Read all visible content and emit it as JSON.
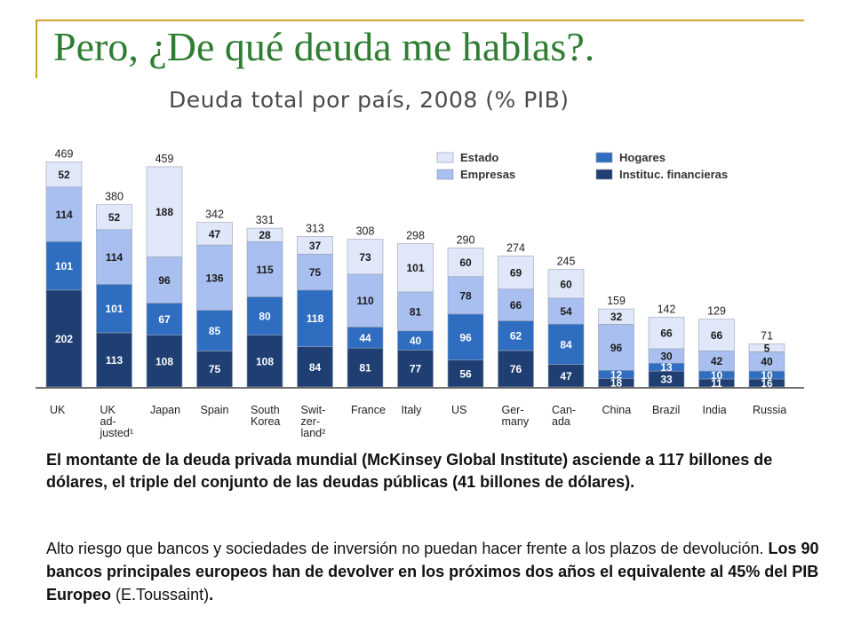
{
  "slide": {
    "title": "Pero, ¿De qué deuda me hablas?."
  },
  "chart_data": {
    "type": "bar",
    "stacked": true,
    "title": "Deuda total por país, 2008 (% PIB)",
    "categories": [
      [
        "UK"
      ],
      [
        "UK",
        "ad-",
        "justed¹"
      ],
      [
        "Japan"
      ],
      [
        "Spain"
      ],
      [
        "South",
        "Korea"
      ],
      [
        "Swit-",
        "zer-",
        "land²"
      ],
      [
        "France"
      ],
      [
        "Italy"
      ],
      [
        "US"
      ],
      [
        "Ger-",
        "many"
      ],
      [
        "Can-",
        "ada"
      ],
      [
        "China"
      ],
      [
        "Brazil"
      ],
      [
        "India"
      ],
      [
        "Russia"
      ]
    ],
    "totals": [
      469,
      380,
      459,
      342,
      331,
      313,
      308,
      298,
      290,
      274,
      245,
      159,
      142,
      129,
      71
    ],
    "series": [
      {
        "name": "Instituc. financieras",
        "color": "#1f3f73",
        "values": [
          202,
          113,
          108,
          75,
          108,
          84,
          81,
          77,
          56,
          76,
          47,
          18,
          33,
          11,
          16
        ]
      },
      {
        "name": "Hogares",
        "color": "#2f6dc0",
        "values": [
          101,
          101,
          67,
          85,
          80,
          118,
          44,
          40,
          96,
          62,
          84,
          12,
          13,
          10,
          10
        ]
      },
      {
        "name": "Empresas",
        "color": "#a9bff0",
        "values": [
          114,
          114,
          96,
          136,
          115,
          75,
          110,
          81,
          78,
          66,
          54,
          96,
          30,
          42,
          40
        ]
      },
      {
        "name": "Estado",
        "color": "#dfe7f8",
        "values": [
          52,
          52,
          188,
          47,
          28,
          37,
          73,
          101,
          60,
          69,
          60,
          32,
          66,
          66,
          5
        ]
      }
    ],
    "legend_order": [
      "Estado",
      "Empresas",
      "Hogares",
      "Instituc. financieras"
    ],
    "legend_position": "top-right",
    "ylim": [
      0,
      470
    ],
    "grid": false
  },
  "text": {
    "note1": "El montante de la deuda privada mundial (McKinsey Global Institute) asciende a 117 billones de dólares, el triple del conjunto de las deudas públicas (41 billones de dólares).",
    "note2_a": "Alto riesgo que bancos y sociedades de inversión no puedan hacer frente a los plazos de devolución.",
    "note2_b": "Los 90 bancos principales europeos han de devolver en los próximos dos años el equivalente al 45% del PIB Europeo",
    "note2_c": "(E.Toussaint)",
    "note2_d": "."
  }
}
